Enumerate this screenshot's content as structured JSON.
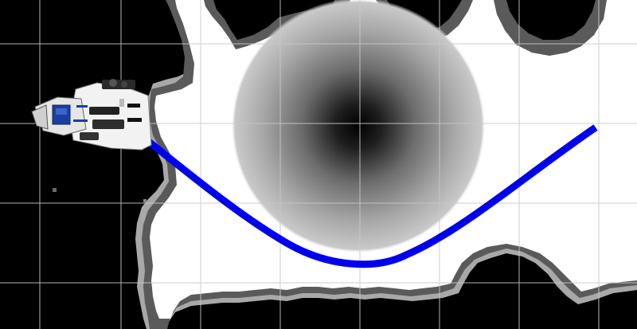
{
  "scene": {
    "view": "costmap-path-planning-visualization",
    "elements": {
      "grid": "reference-grid-lines",
      "costmap": "occupancy-costmap-with-inflation",
      "cost_blob": "circular-cost-gradient",
      "planned_path": "global-plan-path",
      "robot": "mobile-manipulator-robot-model"
    }
  },
  "colors": {
    "free_space": "#ffffff",
    "obstacle": "#000000",
    "inflation_inner": "#5a5a5a",
    "inflation_outer": "#a8a8a8",
    "grid_line": "#c8c8c8",
    "grid_line_dark": "#3a3a3a",
    "path": "#0000ee",
    "robot_body": "#f2f2f2",
    "robot_accent": "#1a3fa0",
    "robot_dark": "#222222"
  },
  "icons": {
    "robot": "robot-icon"
  }
}
